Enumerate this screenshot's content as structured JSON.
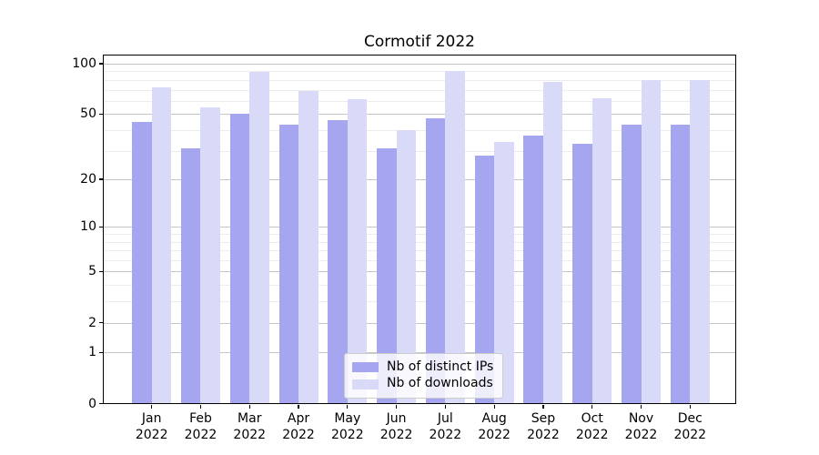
{
  "chart_data": {
    "type": "bar",
    "title": "Cormotif 2022",
    "categories": [
      "Jan\n2022",
      "Feb\n2022",
      "Mar\n2022",
      "Apr\n2022",
      "May\n2022",
      "Jun\n2022",
      "Jul\n2022",
      "Aug\n2022",
      "Sep\n2022",
      "Oct\n2022",
      "Nov\n2022",
      "Dec\n2022"
    ],
    "series": [
      {
        "name": "Nb of distinct IPs",
        "color": "#a5a5f0",
        "values": [
          45,
          31,
          50,
          43,
          46,
          31,
          47,
          28,
          37,
          33,
          43,
          43
        ]
      },
      {
        "name": "Nb of downloads",
        "color": "#d9d9f8",
        "values": [
          72,
          55,
          89,
          69,
          61,
          40,
          90,
          34,
          78,
          62,
          80,
          80
        ]
      }
    ],
    "xlabel": "",
    "ylabel": "",
    "yscale": "log1p",
    "yticks": [
      0,
      1,
      2,
      5,
      10,
      20,
      50,
      100
    ],
    "minor_gridlines": [
      3,
      4,
      6,
      7,
      8,
      9,
      30,
      40,
      60,
      70,
      80,
      90
    ],
    "ylim": [
      0,
      114
    ],
    "grid": true,
    "legend_position": "inside-bottom-center",
    "colors": {
      "grid_major": "#c6c6c6",
      "grid_minor": "#ececec",
      "spine": "#000000",
      "background": "#ffffff"
    }
  }
}
